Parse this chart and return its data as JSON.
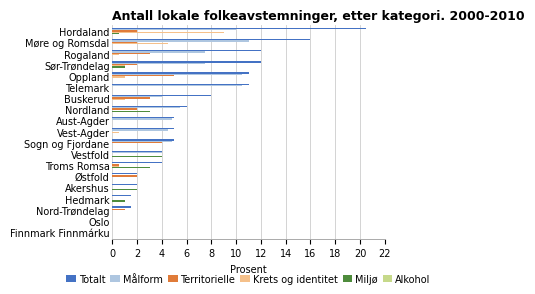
{
  "title": "Antall lokale folkeavstemninger, etter kategori. 2000-2010",
  "xlabel": "Prosent",
  "regions": [
    "Hordaland",
    "Møre og Romsdal",
    "Rogaland",
    "Sør-Trøndelag",
    "Oppland",
    "Telemark",
    "Buskerud",
    "Nordland",
    "Aust-Agder",
    "Vest-Agder",
    "Sogn og Fjordane",
    "Vestfold",
    "Troms Romsa",
    "Østfold",
    "Akershus",
    "Hedmark",
    "Nord-Trøndelag",
    "Oslo",
    "Finnmark Finnmárku"
  ],
  "series": {
    "Totalt": [
      20.5,
      16.0,
      12.0,
      12.0,
      11.0,
      11.0,
      8.0,
      6.0,
      5.0,
      5.0,
      5.0,
      4.0,
      4.0,
      2.0,
      2.0,
      1.5,
      1.5,
      0.0,
      0.0
    ],
    "Målform": [
      10.0,
      11.0,
      7.5,
      7.5,
      10.5,
      10.5,
      4.0,
      5.5,
      4.8,
      4.5,
      4.8,
      4.0,
      0.0,
      0.0,
      0.0,
      0.0,
      0.0,
      0.0,
      0.0
    ],
    "Territorielle": [
      2.0,
      2.0,
      3.0,
      2.0,
      5.0,
      0.0,
      3.0,
      2.0,
      0.0,
      0.0,
      4.0,
      0.0,
      0.5,
      2.0,
      0.0,
      0.0,
      1.0,
      0.0,
      0.0
    ],
    "Krets og identitet": [
      9.0,
      4.5,
      0.5,
      1.0,
      1.0,
      0.0,
      1.0,
      0.0,
      0.0,
      0.5,
      0.0,
      0.0,
      0.5,
      0.0,
      0.0,
      0.0,
      0.0,
      0.0,
      0.0
    ],
    "Miljø": [
      0.5,
      0.0,
      0.0,
      1.0,
      0.0,
      0.0,
      0.0,
      3.0,
      0.0,
      0.0,
      0.0,
      4.0,
      3.0,
      0.0,
      2.0,
      1.0,
      0.0,
      0.0,
      0.0
    ],
    "Alkohol": [
      0.0,
      0.0,
      0.0,
      0.0,
      0.0,
      0.0,
      0.0,
      0.0,
      0.0,
      0.0,
      0.0,
      0.0,
      0.0,
      0.0,
      0.0,
      0.0,
      0.0,
      0.0,
      0.0
    ]
  },
  "colors": {
    "Totalt": "#4472C4",
    "Målform": "#aec6e0",
    "Territorielle": "#e07b39",
    "Krets og identitet": "#f5c08a",
    "Miljø": "#4e8c3c",
    "Alkohol": "#c6d98a"
  },
  "xlim": [
    0,
    22
  ],
  "xticks": [
    0,
    2,
    4,
    6,
    8,
    10,
    12,
    14,
    16,
    18,
    20,
    22
  ],
  "background_color": "#ffffff",
  "grid_color": "#cccccc",
  "title_fontsize": 9,
  "axis_fontsize": 7,
  "legend_fontsize": 7
}
